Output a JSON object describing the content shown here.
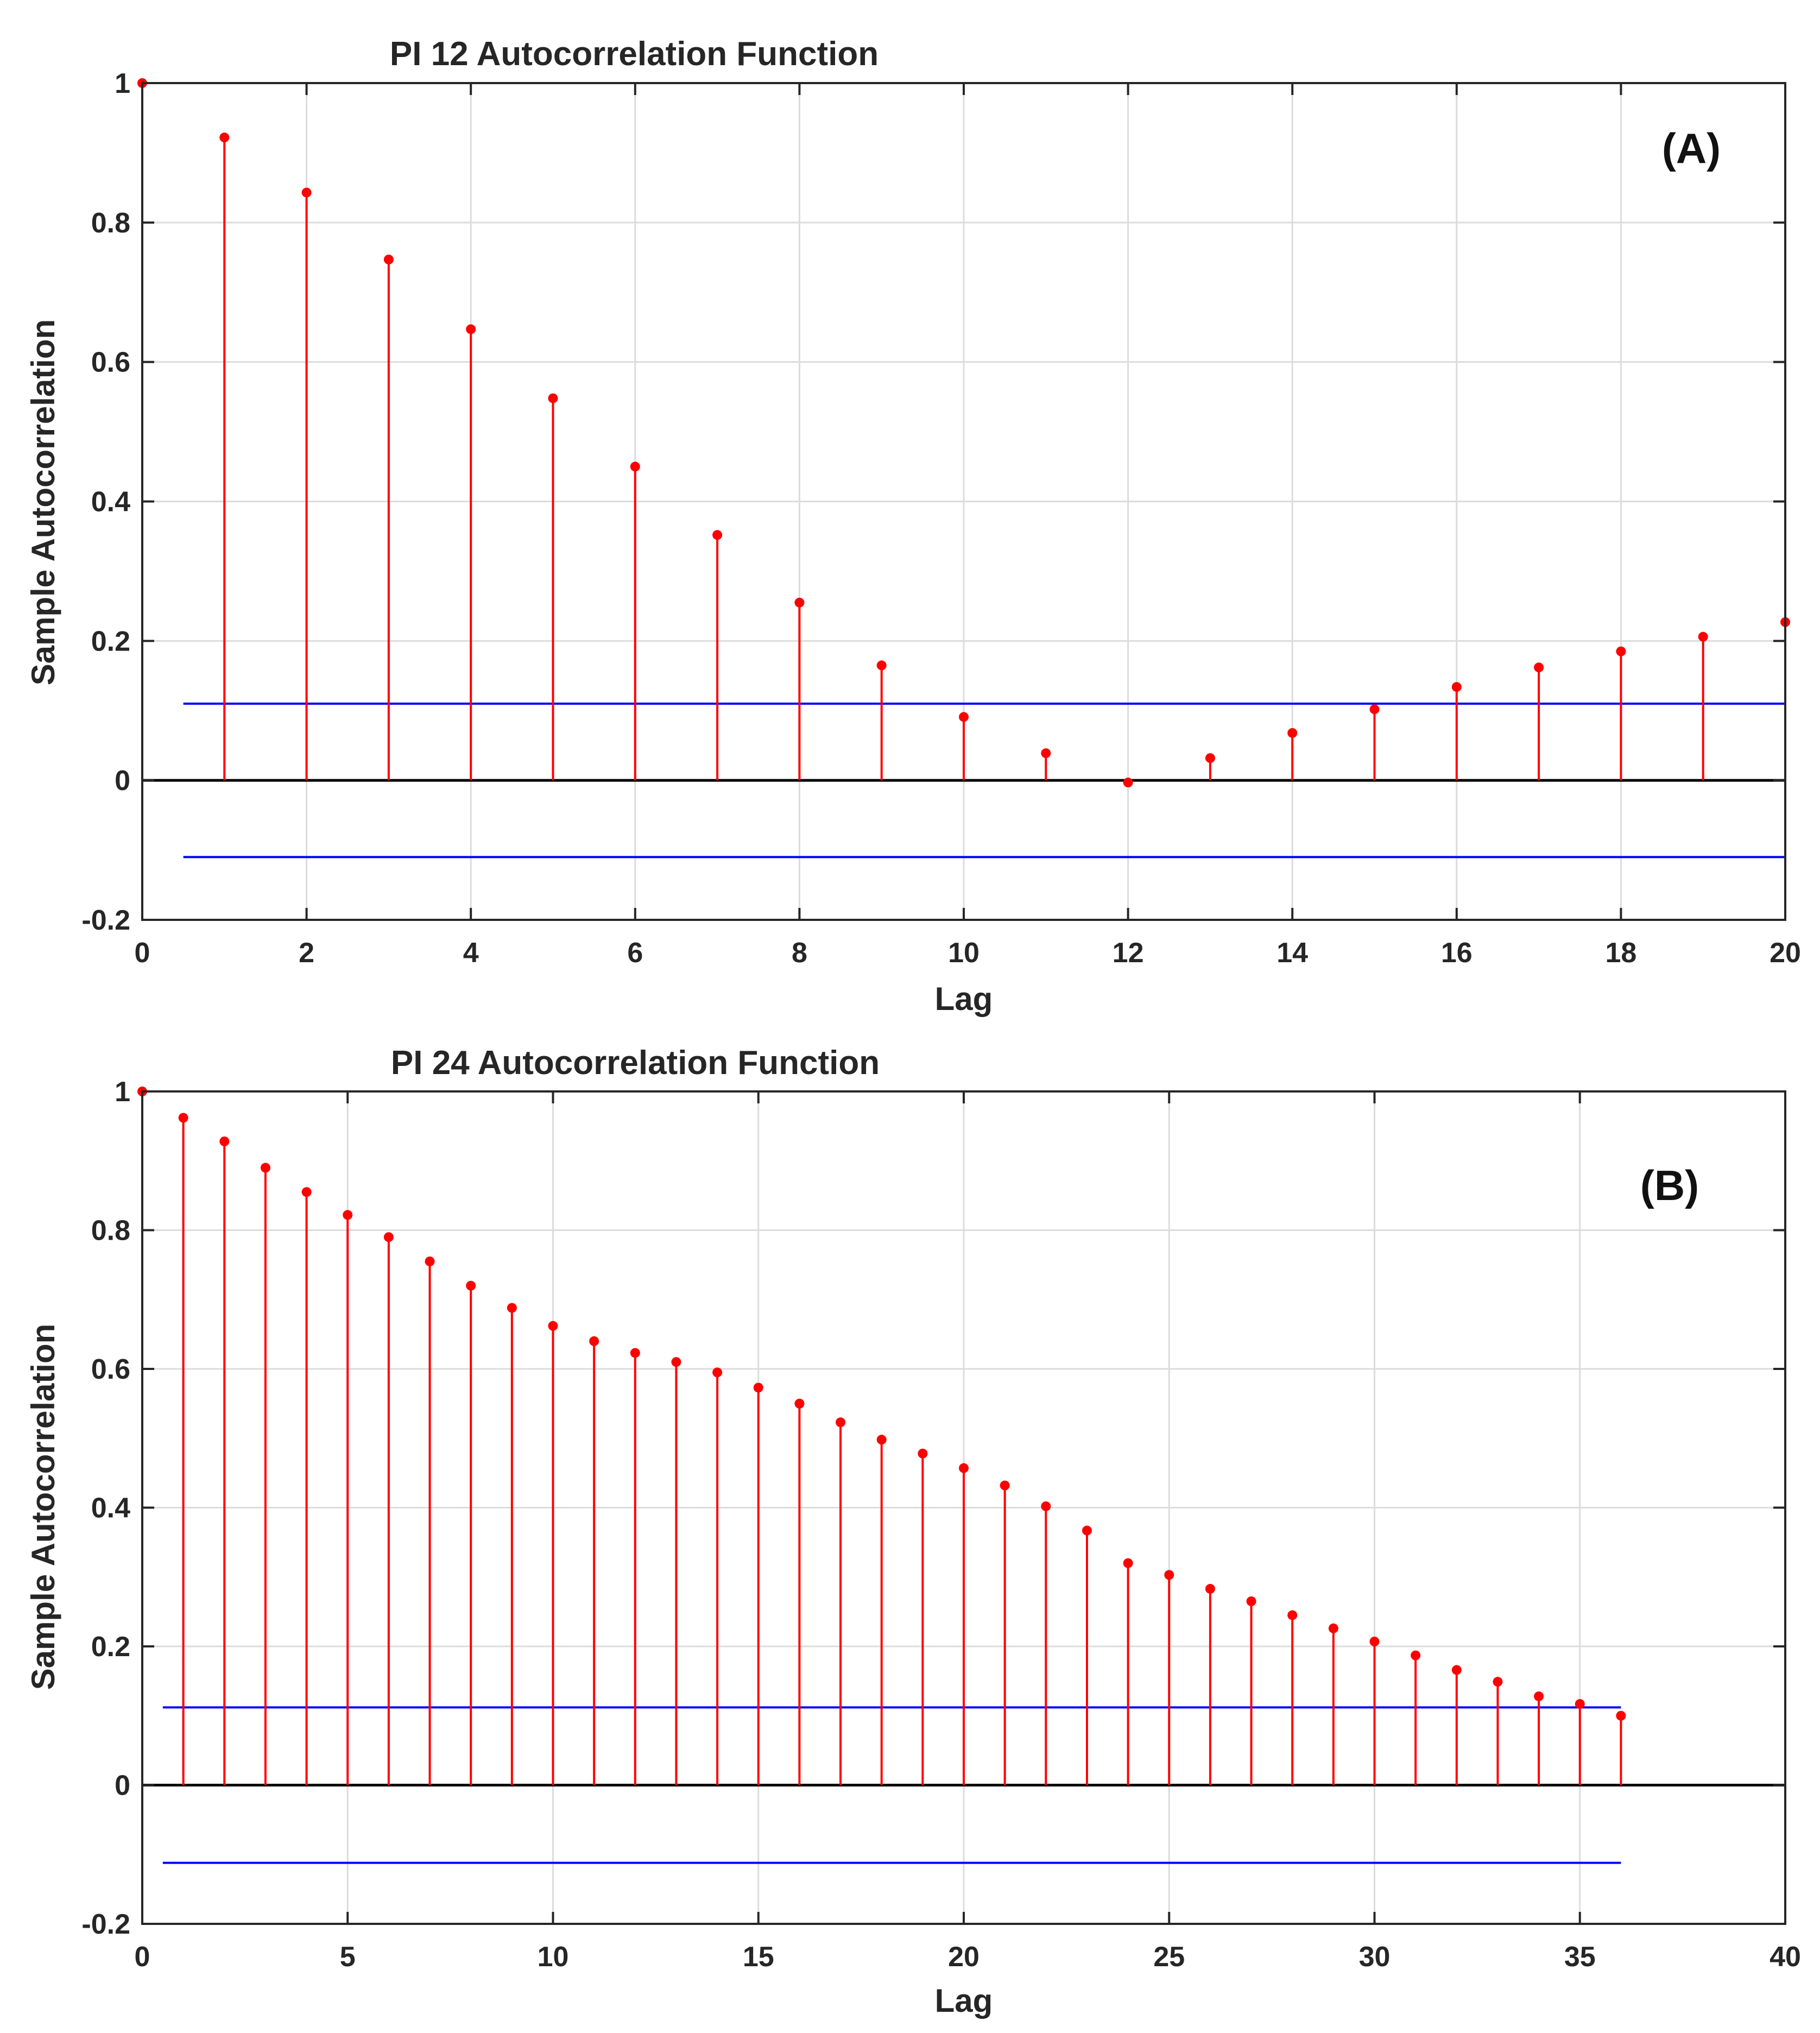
{
  "chart_data": [
    {
      "type": "stem",
      "panel_label": "(A)",
      "title": "PI 12 Autocorrelation Function",
      "xlabel": "Lag",
      "ylabel": "Sample Autocorrelation",
      "xlim": [
        0,
        20
      ],
      "ylim": [
        -0.2,
        1
      ],
      "xticks": [
        0,
        2,
        4,
        6,
        8,
        10,
        12,
        14,
        16,
        18,
        20
      ],
      "xtick_labels": [
        "0",
        "2",
        "4",
        "6",
        "8",
        "10",
        "12",
        "14",
        "16",
        "18",
        "20"
      ],
      "yticks": [
        -0.2,
        0,
        0.2,
        0.4,
        0.6,
        0.8,
        1
      ],
      "ytick_labels": [
        "-0.2",
        "0",
        "0.2",
        "0.4",
        "0.6",
        "0.8",
        "1"
      ],
      "grid": true,
      "lags": [
        0,
        1,
        2,
        3,
        4,
        5,
        6,
        7,
        8,
        9,
        10,
        11,
        12,
        13,
        14,
        15,
        16,
        17,
        18,
        19,
        20
      ],
      "values": [
        1.0,
        0.922,
        0.843,
        0.747,
        0.647,
        0.548,
        0.45,
        0.352,
        0.255,
        0.165,
        0.091,
        0.039,
        -0.003,
        0.032,
        0.068,
        0.102,
        0.134,
        0.162,
        0.185,
        0.206,
        0.227
      ],
      "confidence_bounds": {
        "upper": 0.11,
        "lower": -0.11,
        "x_range": [
          0.5,
          20
        ]
      },
      "colors": {
        "stem": "#ff0000",
        "bounds": "#0000ff",
        "zero_line": "#000000",
        "grid": "#dcdcdc"
      }
    },
    {
      "type": "stem",
      "panel_label": "(B)",
      "title": "PI 24 Autocorrelation Function",
      "xlabel": "Lag",
      "ylabel": "Sample Autocorrelation",
      "xlim": [
        0,
        40
      ],
      "ylim": [
        -0.2,
        1
      ],
      "xticks": [
        0,
        5,
        10,
        15,
        20,
        25,
        30,
        35,
        40
      ],
      "xtick_labels": [
        "0",
        "5",
        "10",
        "15",
        "20",
        "25",
        "30",
        "35",
        "40"
      ],
      "yticks": [
        -0.2,
        0,
        0.2,
        0.4,
        0.6,
        0.8,
        1
      ],
      "ytick_labels": [
        "-0.2",
        "0",
        "0.2",
        "0.4",
        "0.6",
        "0.8",
        "1"
      ],
      "grid": true,
      "lags": [
        0,
        1,
        2,
        3,
        4,
        5,
        6,
        7,
        8,
        9,
        10,
        11,
        12,
        13,
        14,
        15,
        16,
        17,
        18,
        19,
        20,
        21,
        22,
        23,
        24,
        25,
        26,
        27,
        28,
        29,
        30,
        31,
        32,
        33,
        34,
        35,
        36
      ],
      "values": [
        1.0,
        0.962,
        0.928,
        0.89,
        0.855,
        0.822,
        0.79,
        0.755,
        0.72,
        0.688,
        0.662,
        0.64,
        0.623,
        0.61,
        0.595,
        0.573,
        0.55,
        0.523,
        0.498,
        0.478,
        0.457,
        0.432,
        0.402,
        0.367,
        0.32,
        0.303,
        0.283,
        0.265,
        0.245,
        0.226,
        0.207,
        0.187,
        0.166,
        0.149,
        0.128,
        0.117,
        0.1
      ],
      "confidence_bounds": {
        "upper": 0.112,
        "lower": -0.112,
        "x_range": [
          0.5,
          36
        ]
      },
      "colors": {
        "stem": "#ff0000",
        "bounds": "#0000ff",
        "zero_line": "#000000",
        "grid": "#dcdcdc"
      }
    }
  ]
}
